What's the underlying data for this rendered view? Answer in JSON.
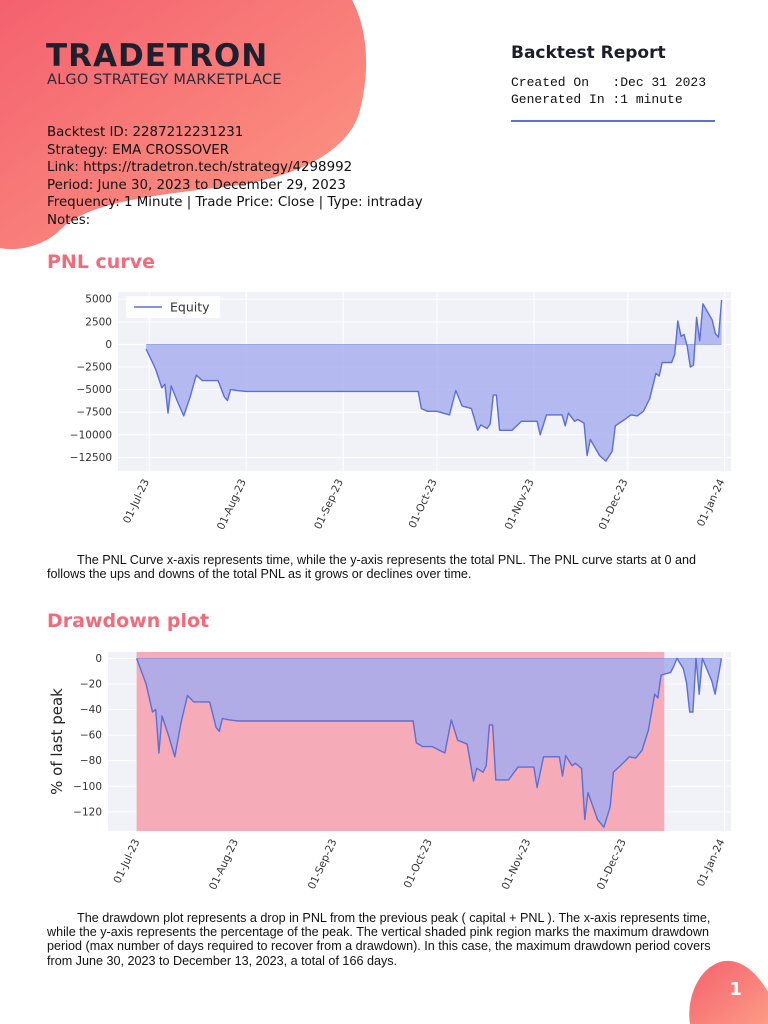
{
  "brand": {
    "logo_text": "TRADETRON",
    "tagline": "ALGO STRATEGY MARKETPLACE"
  },
  "report": {
    "title": "Backtest Report",
    "created_on_line": "Created On   :Dec 31 2023",
    "generated_in_line": "Generated In :1 minute"
  },
  "info": {
    "backtest_id": "Backtest ID:  2287212231231",
    "strategy": "Strategy:  EMA CROSSOVER",
    "link": "Link:  https://tradetron.tech/strategy/4298992",
    "period": "Period:  June 30, 2023 to December 29, 2023",
    "frequency": "Frequency: 1 Minute | Trade Price: Close | Type: intraday",
    "notes": "Notes:"
  },
  "pnl_section": {
    "title": "PNL curve",
    "description": "The PNL Curve x-axis represents time, while the y-axis represents the total PNL. The PNL curve starts at 0 and follows the ups and downs of the total PNL as it grows or declines over time."
  },
  "drawdown_section": {
    "title": "Drawdown plot",
    "description": "The drawdown plot represents a drop in PNL from the previous peak ( capital + PNL ). The x-axis represents time, while the y-axis represents the percentage of the peak. The vertical shaded pink region marks the maximum drawdown period (max number of days required to recover from a drawdown). In this case, the maximum drawdown period covers from June 30, 2023 to December 13, 2023, a total of 166 days."
  },
  "page_number": "1",
  "colors": {
    "accent": "#f26b7a",
    "line": "#5b6fd6",
    "fill": "#a5abec",
    "drawdown_region": "#f5a3b0",
    "plot_bg": "#f1f2f8"
  },
  "chart_data": [
    {
      "type": "area",
      "legend": [
        "Equity"
      ],
      "legend_position": "top-left",
      "x_ticks": [
        "01-Jul-23",
        "01-Aug-23",
        "01-Sep-23",
        "01-Oct-23",
        "01-Nov-23",
        "01-Dec-23",
        "01-Jan-24"
      ],
      "y_ticks": [
        "5000",
        "2500",
        "0",
        "−2500",
        "−5000",
        "−7500",
        "−10000",
        "−12500"
      ],
      "ylim": [
        -14000,
        5800
      ],
      "xlim": [
        "2023-06-21",
        "2024-01-03"
      ],
      "grid": true,
      "series": [
        {
          "name": "Equity",
          "points": [
            [
              "2023-06-30",
              -500
            ],
            [
              "2023-07-03",
              -2700
            ],
            [
              "2023-07-05",
              -4800
            ],
            [
              "2023-07-06",
              -4400
            ],
            [
              "2023-07-07",
              -7600
            ],
            [
              "2023-07-08",
              -4600
            ],
            [
              "2023-07-10",
              -6300
            ],
            [
              "2023-07-12",
              -7900
            ],
            [
              "2023-07-14",
              -5900
            ],
            [
              "2023-07-16",
              -3400
            ],
            [
              "2023-07-18",
              -4000
            ],
            [
              "2023-07-23",
              -4000
            ],
            [
              "2023-07-25",
              -5800
            ],
            [
              "2023-07-26",
              -6200
            ],
            [
              "2023-07-27",
              -5000
            ],
            [
              "2023-07-29",
              -5100
            ],
            [
              "2023-08-01",
              -5200
            ],
            [
              "2023-09-25",
              -5200
            ],
            [
              "2023-09-26",
              -7100
            ],
            [
              "2023-09-28",
              -7400
            ],
            [
              "2023-10-01",
              -7400
            ],
            [
              "2023-10-05",
              -7800
            ],
            [
              "2023-10-07",
              -5100
            ],
            [
              "2023-10-09",
              -6800
            ],
            [
              "2023-10-12",
              -7100
            ],
            [
              "2023-10-14",
              -9500
            ],
            [
              "2023-10-15",
              -8900
            ],
            [
              "2023-10-17",
              -9300
            ],
            [
              "2023-10-18",
              -8800
            ],
            [
              "2023-10-19",
              -5600
            ],
            [
              "2023-10-20",
              -5600
            ],
            [
              "2023-10-21",
              -9500
            ],
            [
              "2023-10-25",
              -9500
            ],
            [
              "2023-10-28",
              -8500
            ],
            [
              "2023-11-02",
              -8500
            ],
            [
              "2023-11-03",
              -10000
            ],
            [
              "2023-11-05",
              -7800
            ],
            [
              "2023-11-10",
              -7800
            ],
            [
              "2023-11-11",
              -9000
            ],
            [
              "2023-11-12",
              -7600
            ],
            [
              "2023-11-14",
              -8500
            ],
            [
              "2023-11-15",
              -8300
            ],
            [
              "2023-11-17",
              -8700
            ],
            [
              "2023-11-18",
              -12300
            ],
            [
              "2023-11-19",
              -10500
            ],
            [
              "2023-11-22",
              -12300
            ],
            [
              "2023-11-24",
              -12900
            ],
            [
              "2023-11-26",
              -11800
            ],
            [
              "2023-11-27",
              -9000
            ],
            [
              "2023-11-30",
              -8300
            ],
            [
              "2023-12-02",
              -7800
            ],
            [
              "2023-12-04",
              -7900
            ],
            [
              "2023-12-06",
              -7400
            ],
            [
              "2023-12-08",
              -6000
            ],
            [
              "2023-12-10",
              -3200
            ],
            [
              "2023-12-11",
              -3500
            ],
            [
              "2023-12-12",
              -2000
            ],
            [
              "2023-12-15",
              -2000
            ],
            [
              "2023-12-16",
              -1100
            ],
            [
              "2023-12-17",
              2600
            ],
            [
              "2023-12-18",
              900
            ],
            [
              "2023-12-19",
              1100
            ],
            [
              "2023-12-20",
              -200
            ],
            [
              "2023-12-21",
              -2500
            ],
            [
              "2023-12-22",
              -2300
            ],
            [
              "2023-12-23",
              3000
            ],
            [
              "2023-12-24",
              400
            ],
            [
              "2023-12-25",
              4500
            ],
            [
              "2023-12-28",
              2700
            ],
            [
              "2023-12-29",
              1200
            ],
            [
              "2023-12-30",
              800
            ],
            [
              "2023-12-31",
              4900
            ]
          ]
        }
      ]
    },
    {
      "type": "area",
      "ylabel": "% of last peak",
      "x_ticks": [
        "01-Jul-23",
        "01-Aug-23",
        "01-Sep-23",
        "01-Oct-23",
        "01-Nov-23",
        "01-Dec-23",
        "01-Jan-24"
      ],
      "y_ticks": [
        "0",
        "−20",
        "−40",
        "−60",
        "−80",
        "−100",
        "−120"
      ],
      "ylim": [
        -135,
        5
      ],
      "xlim": [
        "2023-06-21",
        "2024-01-03"
      ],
      "grid": true,
      "max_drawdown_period": [
        "2023-06-30",
        "2023-12-13"
      ],
      "series": [
        {
          "name": "Drawdown",
          "points": [
            [
              "2023-06-30",
              0
            ],
            [
              "2023-07-03",
              -20
            ],
            [
              "2023-07-05",
              -42
            ],
            [
              "2023-07-06",
              -40
            ],
            [
              "2023-07-07",
              -74
            ],
            [
              "2023-07-08",
              -45
            ],
            [
              "2023-07-10",
              -60
            ],
            [
              "2023-07-12",
              -77
            ],
            [
              "2023-07-14",
              -50
            ],
            [
              "2023-07-16",
              -29
            ],
            [
              "2023-07-18",
              -34
            ],
            [
              "2023-07-23",
              -34
            ],
            [
              "2023-07-25",
              -54
            ],
            [
              "2023-07-26",
              -57
            ],
            [
              "2023-07-27",
              -47
            ],
            [
              "2023-07-29",
              -48
            ],
            [
              "2023-08-01",
              -49
            ],
            [
              "2023-09-25",
              -49
            ],
            [
              "2023-09-26",
              -66
            ],
            [
              "2023-09-28",
              -69
            ],
            [
              "2023-10-01",
              -69
            ],
            [
              "2023-10-05",
              -74
            ],
            [
              "2023-10-07",
              -48
            ],
            [
              "2023-10-09",
              -64
            ],
            [
              "2023-10-12",
              -67
            ],
            [
              "2023-10-14",
              -96
            ],
            [
              "2023-10-15",
              -86
            ],
            [
              "2023-10-17",
              -89
            ],
            [
              "2023-10-18",
              -84
            ],
            [
              "2023-10-19",
              -52
            ],
            [
              "2023-10-20",
              -52
            ],
            [
              "2023-10-21",
              -95
            ],
            [
              "2023-10-25",
              -95
            ],
            [
              "2023-10-28",
              -85
            ],
            [
              "2023-11-02",
              -85
            ],
            [
              "2023-11-03",
              -101
            ],
            [
              "2023-11-05",
              -77
            ],
            [
              "2023-11-10",
              -77
            ],
            [
              "2023-11-11",
              -92
            ],
            [
              "2023-11-12",
              -76
            ],
            [
              "2023-11-14",
              -84
            ],
            [
              "2023-11-15",
              -82
            ],
            [
              "2023-11-17",
              -86
            ],
            [
              "2023-11-18",
              -126
            ],
            [
              "2023-11-19",
              -105
            ],
            [
              "2023-11-22",
              -126
            ],
            [
              "2023-11-24",
              -132
            ],
            [
              "2023-11-26",
              -116
            ],
            [
              "2023-11-27",
              -89
            ],
            [
              "2023-11-30",
              -82
            ],
            [
              "2023-12-02",
              -77
            ],
            [
              "2023-12-04",
              -78
            ],
            [
              "2023-12-06",
              -72
            ],
            [
              "2023-12-08",
              -56
            ],
            [
              "2023-12-10",
              -28
            ],
            [
              "2023-12-11",
              -31
            ],
            [
              "2023-12-12",
              -13
            ],
            [
              "2023-12-15",
              -11
            ],
            [
              "2023-12-16",
              -6
            ],
            [
              "2023-12-17",
              0
            ],
            [
              "2023-12-19",
              -8
            ],
            [
              "2023-12-20",
              -19
            ],
            [
              "2023-12-21",
              -42
            ],
            [
              "2023-12-22",
              -42
            ],
            [
              "2023-12-23",
              0
            ],
            [
              "2023-12-24",
              -28
            ],
            [
              "2023-12-25",
              0
            ],
            [
              "2023-12-28",
              -18
            ],
            [
              "2023-12-29",
              -28
            ],
            [
              "2023-12-31",
              0
            ]
          ]
        }
      ]
    }
  ]
}
